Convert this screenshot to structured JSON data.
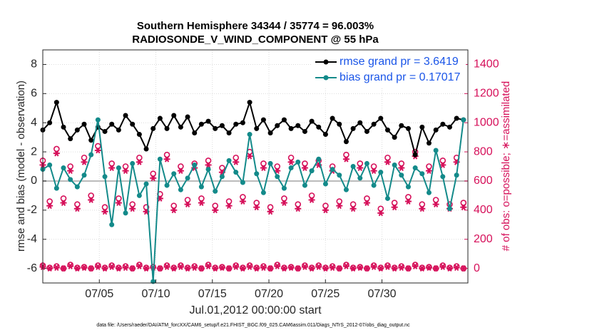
{
  "chart_data": {
    "type": "line",
    "title": "Southern Hemisphere 34344 / 35774 = 96.003%",
    "subtitle": "RADIOSONDE_V_WIND_COMPONENT @ 55 hPa",
    "xlabel": "Jul.01,2012 00:00:00 start",
    "ylabel": "rmse and bias (model - observation)",
    "y2label": "# of obs: o=possible; ∗=assimilated",
    "footnote": "data file: /Users/raeder/DAI/ATM_forcXX/CAM6_setup/f.e21.FHIST_BGC.f09_025.CAM6assim.011/Diags_NTrS_2012-07/obs_diag_output.nc",
    "xlim": [
      0,
      37.6
    ],
    "xticks": [
      {
        "value": 5,
        "label": "07/05"
      },
      {
        "value": 10,
        "label": "07/10"
      },
      {
        "value": 15,
        "label": "07/15"
      },
      {
        "value": 20,
        "label": "07/20"
      },
      {
        "value": 25,
        "label": "07/25"
      },
      {
        "value": 30,
        "label": "07/30"
      }
    ],
    "ylim": [
      -7,
      9
    ],
    "yticks": [
      -6,
      -4,
      -2,
      0,
      2,
      4,
      6,
      8
    ],
    "y2lim": [
      -100,
      1500
    ],
    "y2ticks": [
      0,
      200,
      400,
      600,
      800,
      1000,
      1200,
      1400
    ],
    "grid": true,
    "legend": "northeast",
    "x": [
      0,
      0.61,
      1.22,
      1.83,
      2.44,
      3.05,
      3.66,
      4.27,
      4.88,
      5.49,
      6.1,
      6.71,
      7.32,
      7.93,
      8.54,
      9.15,
      9.76,
      10.37,
      10.98,
      11.59,
      12.2,
      12.81,
      13.42,
      14.03,
      14.64,
      15.25,
      15.86,
      16.47,
      17.08,
      17.69,
      18.3,
      18.91,
      19.52,
      20.13,
      20.74,
      21.35,
      21.96,
      22.57,
      23.18,
      23.79,
      24.4,
      25.01,
      25.62,
      26.23,
      26.84,
      27.45,
      28.06,
      28.67,
      29.28,
      29.89,
      30.5,
      31.11,
      31.72,
      32.33,
      32.94,
      33.55,
      34.16,
      34.77,
      35.38,
      35.99,
      36.6,
      37.21
    ],
    "series": [
      {
        "name": "rmse grand pr = 3.6419",
        "color": "#000000",
        "marker": "dot",
        "line": true,
        "values": [
          3.5,
          4.0,
          5.4,
          3.7,
          2.9,
          3.5,
          3.9,
          2.8,
          3.7,
          3.4,
          3.9,
          3.5,
          4.5,
          3.9,
          3.2,
          2.2,
          3.6,
          4.3,
          3.6,
          4.5,
          3.7,
          4.4,
          3.3,
          3.9,
          4.1,
          3.6,
          3.8,
          3.3,
          3.9,
          4.0,
          5.4,
          3.6,
          4.2,
          3.3,
          3.8,
          4.2,
          3.6,
          3.8,
          3.4,
          4.1,
          3.7,
          3.2,
          4.3,
          3.9,
          2.7,
          3.6,
          4.0,
          3.4,
          3.9,
          4.3,
          3.5,
          3.0,
          3.8,
          3.6,
          1.8,
          3.7,
          2.6,
          3.5,
          3.9,
          3.7,
          4.3,
          4.2
        ]
      },
      {
        "name": "bias grand pr = 0.17017",
        "color": "#138a8a",
        "marker": "dot",
        "line": true,
        "values": [
          0.8,
          1.1,
          -0.5,
          0.9,
          0.1,
          -0.4,
          0.4,
          1.8,
          4.2,
          0.3,
          -3.0,
          0.9,
          -2.2,
          1.2,
          -1.0,
          -0.2,
          -6.9,
          1.5,
          -0.3,
          0.5,
          -0.6,
          0.2,
          1.1,
          -0.4,
          0.8,
          -0.7,
          0.3,
          1.4,
          0.6,
          -0.1,
          3.2,
          0.5,
          -0.8,
          1.2,
          0.3,
          -0.5,
          0.9,
          1.3,
          -0.3,
          0.7,
          1.5,
          -0.2,
          0.8,
          0.4,
          -0.6,
          1.0,
          0.2,
          1.2,
          -0.3,
          0.6,
          -1.2,
          1.1,
          0.4,
          -0.4,
          0.9,
          0.5,
          -0.8,
          2.1,
          0.3,
          -1.9,
          0.4,
          4.2
        ]
      },
      {
        "color": "#d6105a",
        "marker": "circle",
        "line": false,
        "axis": "y2",
        "values": [
          740,
          460,
          820,
          480,
          700,
          440,
          760,
          500,
          840,
          420,
          720,
          480,
          700,
          440,
          760,
          420,
          650,
          510,
          780,
          430,
          700,
          470,
          720,
          480,
          740,
          430,
          690,
          460,
          760,
          490,
          800,
          450,
          720,
          420,
          700,
          480,
          760,
          440,
          720,
          500,
          740,
          430,
          700,
          460,
          780,
          440,
          720,
          480,
          700,
          410,
          760,
          450,
          720,
          490,
          800,
          440,
          700,
          470,
          740,
          440,
          760,
          450
        ]
      },
      {
        "color": "#d6105a",
        "marker": "star",
        "line": false,
        "axis": "y2",
        "values": [
          710,
          430,
          790,
          450,
          670,
          410,
          730,
          470,
          810,
          390,
          690,
          450,
          670,
          410,
          730,
          390,
          620,
          480,
          750,
          400,
          670,
          440,
          690,
          450,
          710,
          400,
          660,
          430,
          730,
          460,
          770,
          420,
          690,
          390,
          670,
          450,
          730,
          410,
          690,
          470,
          710,
          400,
          670,
          430,
          750,
          410,
          690,
          450,
          670,
          380,
          730,
          420,
          690,
          460,
          770,
          410,
          670,
          440,
          710,
          410,
          730,
          420
        ]
      },
      {
        "color": "#d6105a",
        "marker": "circle",
        "line": false,
        "axis": "y2",
        "values": [
          20,
          5,
          15,
          0,
          25,
          5,
          10,
          0,
          20,
          5,
          20,
          5,
          15,
          0,
          25,
          5,
          10,
          0,
          20,
          5,
          20,
          5,
          15,
          0,
          25,
          5,
          10,
          0,
          20,
          5,
          20,
          5,
          15,
          0,
          25,
          5,
          10,
          0,
          20,
          5,
          20,
          5,
          15,
          0,
          25,
          5,
          10,
          0,
          20,
          5,
          20,
          5,
          15,
          0,
          25,
          5,
          10,
          0,
          20,
          5,
          15,
          0
        ]
      },
      {
        "color": "#d6105a",
        "marker": "star",
        "line": false,
        "axis": "y2",
        "values": [
          10,
          0,
          5,
          0,
          15,
          0,
          5,
          0,
          10,
          0,
          10,
          0,
          5,
          0,
          15,
          0,
          5,
          0,
          10,
          0,
          10,
          0,
          5,
          0,
          15,
          0,
          5,
          0,
          10,
          0,
          10,
          0,
          5,
          0,
          15,
          0,
          5,
          0,
          10,
          0,
          10,
          0,
          5,
          0,
          15,
          0,
          5,
          0,
          10,
          0,
          10,
          0,
          5,
          0,
          15,
          0,
          5,
          0,
          10,
          0,
          5,
          0
        ]
      }
    ]
  }
}
